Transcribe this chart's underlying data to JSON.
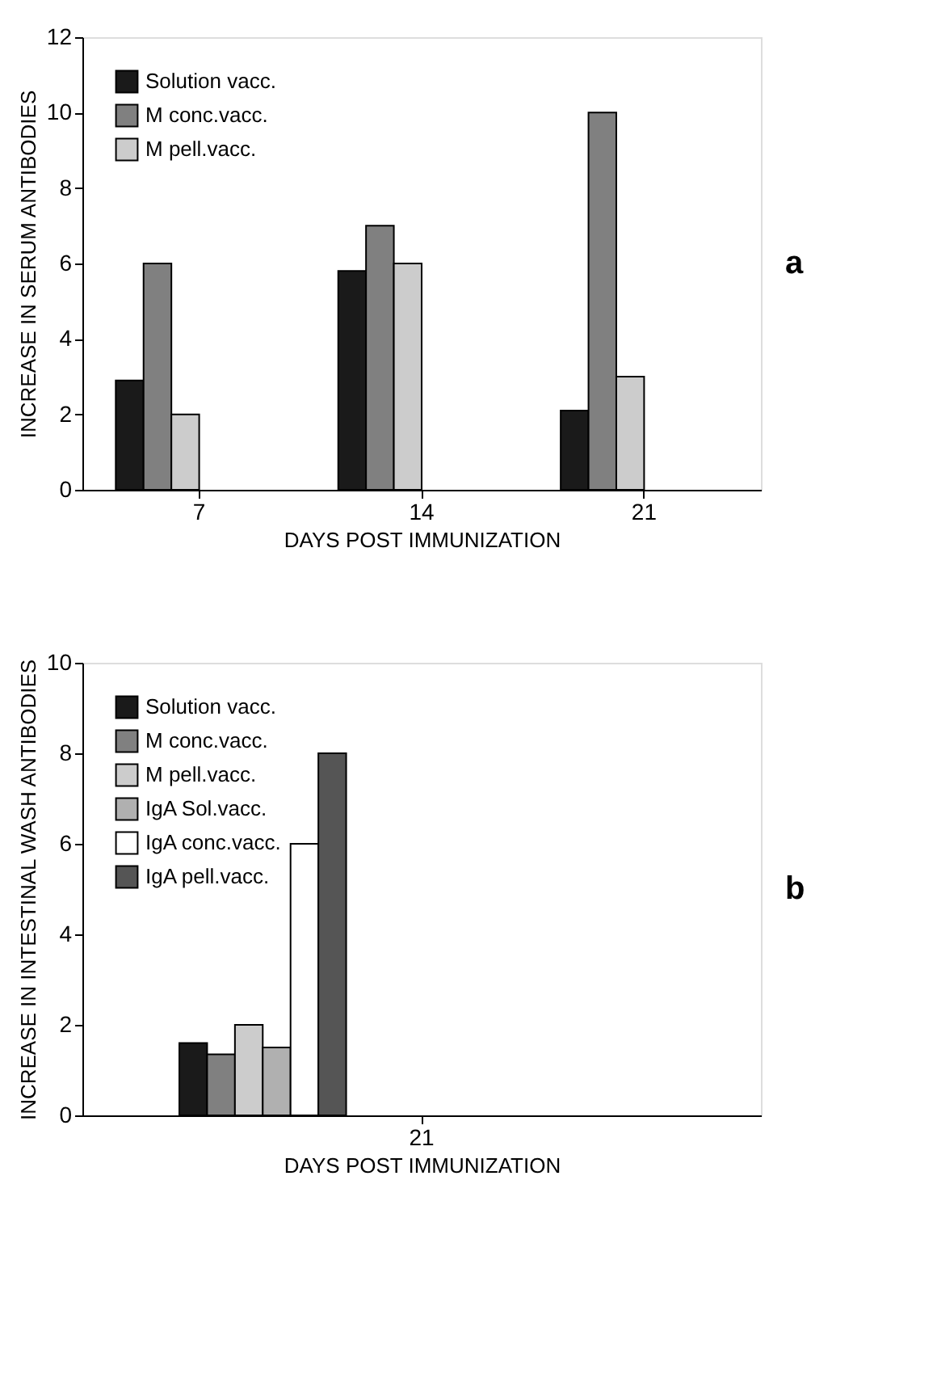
{
  "chart_data": [
    {
      "type": "bar",
      "xlabel": "DAYS POST IMMUNIZATION",
      "ylabel": "INCREASE IN SERUM ANTIBODIES",
      "categories": [
        "7",
        "14",
        "21"
      ],
      "series": [
        {
          "name": "Solution  vacc.",
          "color": "#1a1a1a",
          "values": [
            2.9,
            5.8,
            2.1
          ]
        },
        {
          "name": "M conc.vacc.",
          "color": "#808080",
          "values": [
            6,
            7,
            10
          ]
        },
        {
          "name": "M pell.vacc.",
          "color": "#cccccc",
          "values": [
            2,
            6,
            3
          ]
        }
      ],
      "ylim": [
        0,
        12
      ],
      "yticks": [
        0,
        2,
        4,
        6,
        8,
        10,
        12
      ],
      "grid": false,
      "legend": "top left",
      "annotations": [
        "a"
      ]
    },
    {
      "type": "bar",
      "xlabel": "DAYS POST IMMUNIZATION",
      "ylabel": "INCREASE IN INTESTINAL WASH ANTIBODIES",
      "categories": [
        "21"
      ],
      "series": [
        {
          "name": "Solution vacc.",
          "color": "#1a1a1a",
          "values": [
            1.6
          ]
        },
        {
          "name": "M conc.vacc.",
          "color": "#808080",
          "values": [
            1.35
          ]
        },
        {
          "name": "M pell.vacc.",
          "color": "#cccccc",
          "values": [
            2.0
          ]
        },
        {
          "name": "IgA Sol.vacc.",
          "color": "#b0b0b0",
          "values": [
            1.5
          ]
        },
        {
          "name": "IgA conc.vacc.",
          "color": "#ffffff",
          "values": [
            6.0
          ]
        },
        {
          "name": "IgA pell.vacc.",
          "color": "#555555",
          "values": [
            8.0
          ]
        }
      ],
      "ylim": [
        0,
        10
      ],
      "yticks": [
        0,
        2,
        4,
        6,
        8,
        10
      ],
      "grid": false,
      "legend": "top left",
      "annotations": [
        "b"
      ]
    }
  ]
}
